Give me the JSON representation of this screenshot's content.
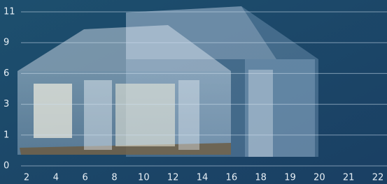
{
  "y_axis_labels": [
    "11",
    "9",
    "6",
    "3",
    "1",
    "0"
  ],
  "x_axis_labels": [
    "2",
    "4",
    "6",
    "8",
    "10",
    "12",
    "14",
    "16",
    "18",
    "19",
    "20",
    "21",
    "22"
  ]
}
